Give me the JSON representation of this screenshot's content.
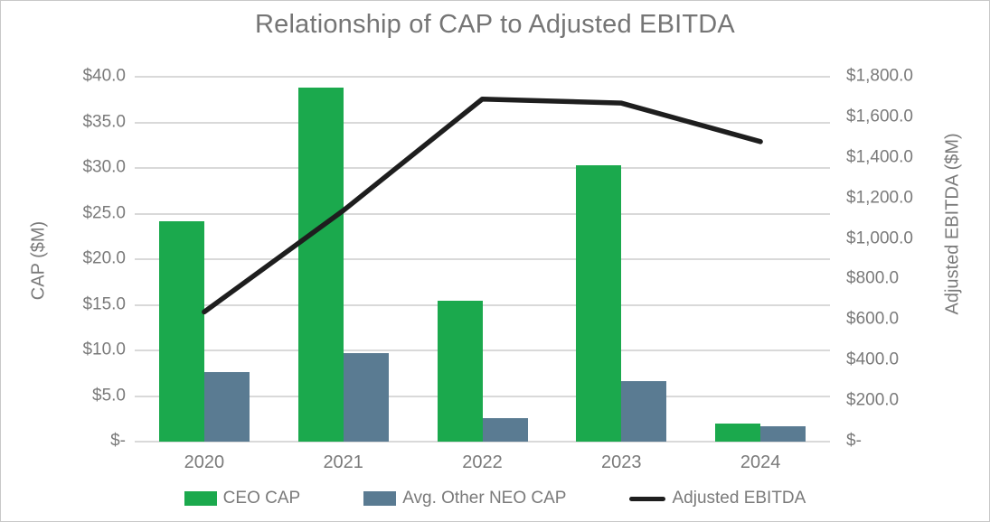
{
  "chart_data": {
    "type": "combo-bar-line",
    "title": "Relationship of CAP to Adjusted EBITDA",
    "categories": [
      "2020",
      "2021",
      "2022",
      "2023",
      "2024"
    ],
    "series": [
      {
        "name": "CEO CAP",
        "type": "bar",
        "axis": "left",
        "color": "#1BA94D",
        "values": [
          24.2,
          38.8,
          15.4,
          30.3,
          2.0
        ]
      },
      {
        "name": "Avg. Other NEO CAP",
        "type": "bar",
        "axis": "left",
        "color": "#5A7B92",
        "values": [
          7.6,
          9.7,
          2.6,
          6.6,
          1.7
        ]
      },
      {
        "name": "Adjusted EBITDA",
        "type": "line",
        "axis": "right",
        "color": "#1E1E1E",
        "values": [
          640,
          1140,
          1690,
          1670,
          1480
        ]
      }
    ],
    "left_axis": {
      "label": "CAP ($M)",
      "min": 0,
      "max": 40,
      "ticks": [
        "$40.0",
        "$35.0",
        "$30.0",
        "$25.0",
        "$20.0",
        "$15.0",
        "$10.0",
        "$5.0",
        "$-"
      ]
    },
    "right_axis": {
      "label": "Adjusted EBITDA ($M)",
      "min": 0,
      "max": 1800,
      "ticks": [
        "$1,800.0",
        "$1,600.0",
        "$1,400.0",
        "$1,200.0",
        "$1,000.0",
        "$800.0",
        "$600.0",
        "$400.0",
        "$200.0",
        "$-"
      ]
    },
    "legend_position": "bottom",
    "grid": "horizontal",
    "colors": {
      "gridline": "#d9d9d9",
      "text": "#7a7a7a",
      "background": "#ffffff",
      "border": "#c8c8c8"
    }
  }
}
